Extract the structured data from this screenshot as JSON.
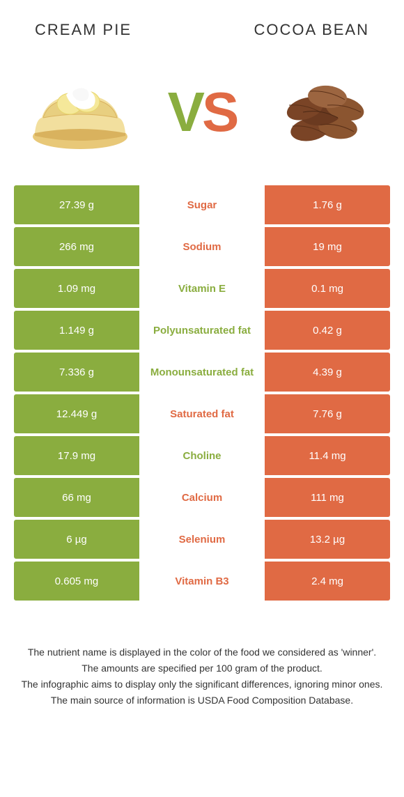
{
  "colors": {
    "green": "#8aad3f",
    "orange": "#e06a44",
    "text": "#333333",
    "background": "#ffffff"
  },
  "header": {
    "left_title": "Cream pie",
    "right_title": "Cocoa bean"
  },
  "hero": {
    "vs_v": "V",
    "vs_s": "S",
    "left_alt": "cream pie",
    "right_alt": "cocoa beans"
  },
  "rows": [
    {
      "left": "27.39 g",
      "label": "Sugar",
      "right": "1.76 g",
      "winner": "orange"
    },
    {
      "left": "266 mg",
      "label": "Sodium",
      "right": "19 mg",
      "winner": "orange"
    },
    {
      "left": "1.09 mg",
      "label": "Vitamin E",
      "right": "0.1 mg",
      "winner": "green"
    },
    {
      "left": "1.149 g",
      "label": "Polyunsaturated fat",
      "right": "0.42 g",
      "winner": "green"
    },
    {
      "left": "7.336 g",
      "label": "Monounsaturated fat",
      "right": "4.39 g",
      "winner": "green"
    },
    {
      "left": "12.449 g",
      "label": "Saturated fat",
      "right": "7.76 g",
      "winner": "orange"
    },
    {
      "left": "17.9 mg",
      "label": "Choline",
      "right": "11.4 mg",
      "winner": "green"
    },
    {
      "left": "66 mg",
      "label": "Calcium",
      "right": "111 mg",
      "winner": "orange"
    },
    {
      "left": "6 µg",
      "label": "Selenium",
      "right": "13.2 µg",
      "winner": "orange"
    },
    {
      "left": "0.605 mg",
      "label": "Vitamin B3",
      "right": "2.4 mg",
      "winner": "orange"
    }
  ],
  "footer": {
    "line1": "The nutrient name is displayed in the color of the food we considered as 'winner'.",
    "line2": "The amounts are specified per 100 gram of the product.",
    "line3": "The infographic aims to display only the significant differences, ignoring minor ones.",
    "line4": "The main source of information is USDA Food Composition Database."
  }
}
